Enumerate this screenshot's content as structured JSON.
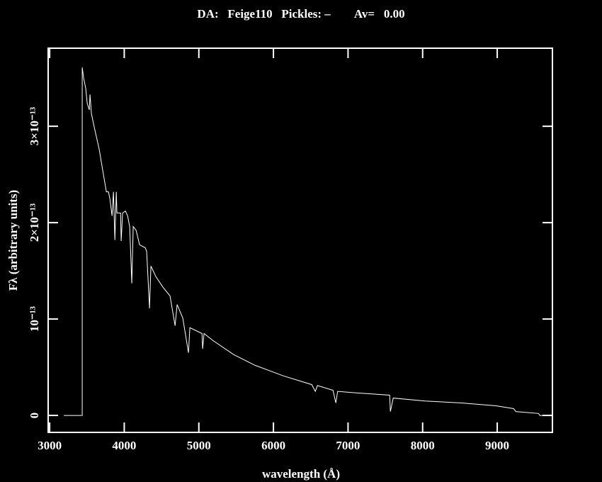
{
  "chart_data": {
    "type": "line",
    "title": "DA:   Feige110   Pickles: –        Av=   0.00",
    "x_label": "wavelength (Å)",
    "y_label": "Fλ (arbitrary units)",
    "color": "#ffffff",
    "x": [
      3190,
      3437,
      3437,
      3456,
      3484,
      3503,
      3532,
      3541,
      3560,
      3598,
      3665,
      3712,
      3760,
      3788,
      3807,
      3836,
      3855,
      3864,
      3874,
      3893,
      3902,
      3950,
      3959,
      3978,
      4016,
      4045,
      4073,
      4101,
      4120,
      4159,
      4206,
      4282,
      4301,
      4339,
      4358,
      4424,
      4519,
      4614,
      4681,
      4709,
      4785,
      4861,
      4880,
      5042,
      5051,
      5070,
      5184,
      5469,
      5754,
      6134,
      6514,
      6561,
      6590,
      6799,
      6837,
      6860,
      7179,
      7558,
      7568,
      7606,
      8033,
      8508,
      8983,
      9220,
      9249,
      9553,
      9572,
      9725
    ],
    "values": [
      0,
      0,
      3.61e-13,
      3.5e-13,
      3.39e-13,
      3.24e-13,
      3.17e-13,
      3.33e-13,
      3.13e-13,
      2.99e-13,
      2.76e-13,
      2.54e-13,
      2.32e-13,
      2.32e-13,
      2.25e-13,
      2.07e-13,
      2.32e-13,
      2.1e-13,
      1.82e-13,
      2.32e-13,
      2.1e-13,
      2.1e-13,
      1.81e-13,
      2.1e-13,
      2.12e-13,
      2.07e-13,
      1.96e-13,
      1.37e-13,
      1.96e-13,
      1.92e-13,
      1.77e-13,
      1.74e-13,
      1.7e-13,
      1.11e-13,
      1.55e-13,
      1.44e-13,
      1.33e-13,
      1.24e-13,
      9.3e-14,
      1.15e-13,
      1.01e-13,
      6.5e-14,
      9.1e-14,
      8.5e-14,
      6.9e-14,
      8.5e-14,
      7.8e-14,
      6.3e-14,
      5.2e-14,
      4.1e-14,
      3.2e-14,
      2.5e-14,
      3.1e-14,
      2.6e-14,
      1.3e-14,
      2.5e-14,
      2.3e-14,
      2.1e-14,
      4e-15,
      1.8e-14,
      1.5e-14,
      1.3e-14,
      1e-14,
      7e-15,
      4e-15,
      2e-15,
      0,
      0
    ],
    "xlim": [
      2980,
      9740
    ],
    "ylim": [
      -1.76e-14,
      3.81e-13
    ],
    "xticks": [
      3000,
      4000,
      5000,
      6000,
      7000,
      8000,
      9000
    ],
    "yticks": [
      0,
      {
        "value": 1e-13,
        "label": "10⁻¹³"
      },
      {
        "value": 2e-13,
        "label": "2×10⁻¹³"
      },
      {
        "value": 3e-13,
        "label": "3×10⁻¹³"
      }
    ]
  }
}
